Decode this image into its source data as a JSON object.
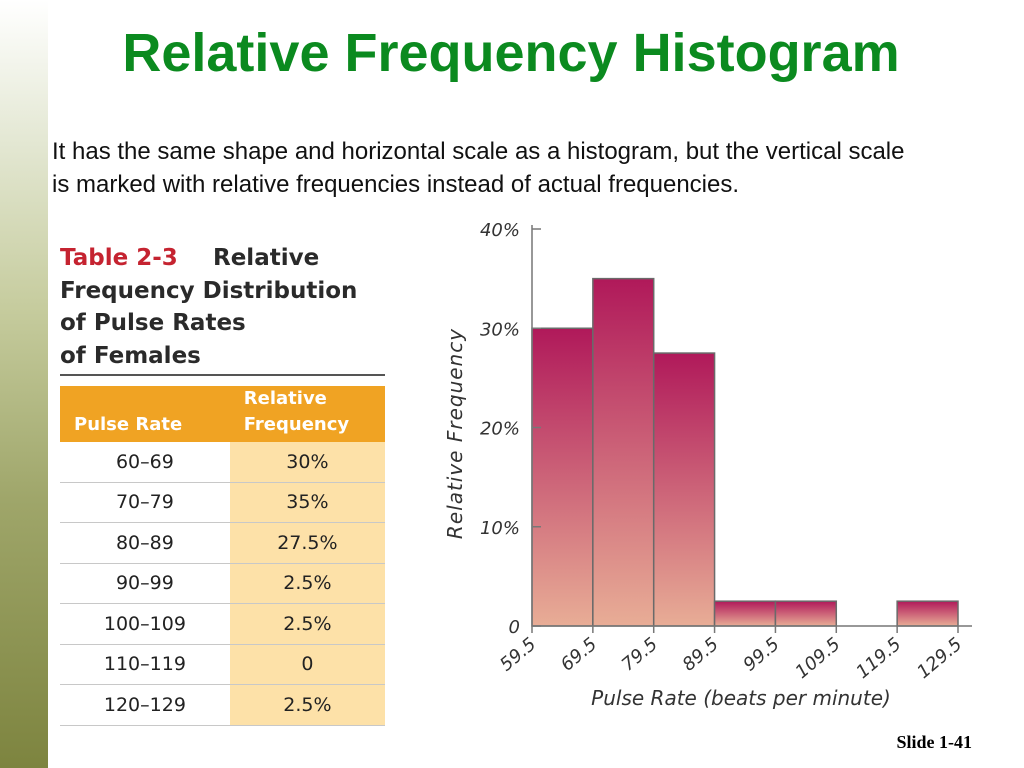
{
  "slide": {
    "title": "Relative Frequency Histogram",
    "intro": "It has the same shape and horizontal scale as a histogram, but the vertical scale is marked with relative frequencies instead of actual frequencies.",
    "slide_number": "Slide 1-41"
  },
  "table": {
    "number": "Table 2-3",
    "title_lines": [
      "Relative",
      "Frequency Distribution",
      "of Pulse Rates",
      "of Females"
    ],
    "headers": [
      "Pulse Rate",
      "Relative Frequency"
    ],
    "rows": [
      [
        "60–69",
        "30%"
      ],
      [
        "70–79",
        "35%"
      ],
      [
        "80–89",
        "27.5%"
      ],
      [
        "90–99",
        "2.5%"
      ],
      [
        "100–109",
        "2.5%"
      ],
      [
        "110–119",
        "0"
      ],
      [
        "120–129",
        "2.5%"
      ]
    ],
    "colors": {
      "number": "#c52330",
      "header_bg": "#f0a323",
      "value_bg": "#fde1a8"
    }
  },
  "chart_data": {
    "type": "bar",
    "bin_edges": [
      59.5,
      69.5,
      79.5,
      89.5,
      99.5,
      109.5,
      119.5,
      129.5
    ],
    "values": [
      30,
      35,
      27.5,
      2.5,
      2.5,
      0,
      2.5
    ],
    "xlabel": "Pulse Rate (beats per minute)",
    "ylabel": "Relative Frequency",
    "ylim": [
      0,
      40
    ],
    "yticks": [
      0,
      10,
      20,
      30,
      40
    ],
    "yticklabels": [
      "0",
      "10%",
      "20%",
      "30%",
      "40%"
    ],
    "xticklabels": [
      "59.5",
      "69.5",
      "79.5",
      "89.5",
      "99.5",
      "109.5",
      "119.5",
      "129.5"
    ],
    "grid": false,
    "colors": {
      "bar_top": "#b0195a",
      "bar_bottom": "#e8ad96",
      "bar_edge": "#6a6a6a"
    }
  },
  "theme": {
    "title_color": "#0b8a1f"
  }
}
